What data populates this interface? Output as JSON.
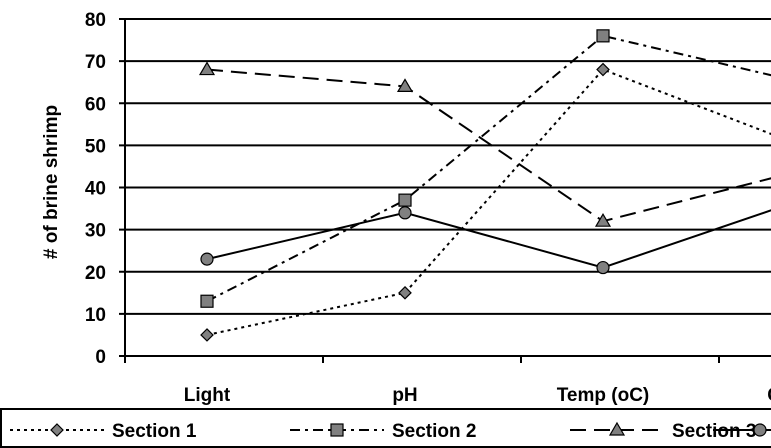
{
  "chart_data": {
    "type": "line",
    "title": "",
    "xlabel": "",
    "ylabel": "# of brine shrimp",
    "ylim": [
      0,
      80
    ],
    "yticks": [
      "0",
      "10",
      "20",
      "30",
      "40",
      "50",
      "60",
      "70",
      "80"
    ],
    "categories": [
      "Light",
      "pH",
      "Temp (oC)",
      "Control"
    ],
    "grid": "horizontal",
    "legend_position": "bottom",
    "series": [
      {
        "name": "Section 1",
        "values": [
          5,
          15,
          68,
          50
        ],
        "marker": "diamond",
        "dash": "dotted",
        "color": "#808080"
      },
      {
        "name": "Section 2",
        "values": [
          13,
          37,
          76,
          65
        ],
        "marker": "square",
        "dash": "dash-dot",
        "color": "#808080"
      },
      {
        "name": "Section 3",
        "values": [
          68,
          64,
          32,
          44
        ],
        "marker": "triangle",
        "dash": "long-dash",
        "color": "#808080"
      },
      {
        "name": "",
        "values": [
          23,
          34,
          21,
          37
        ],
        "marker": "circle",
        "dash": "solid",
        "color": "#808080"
      }
    ]
  }
}
